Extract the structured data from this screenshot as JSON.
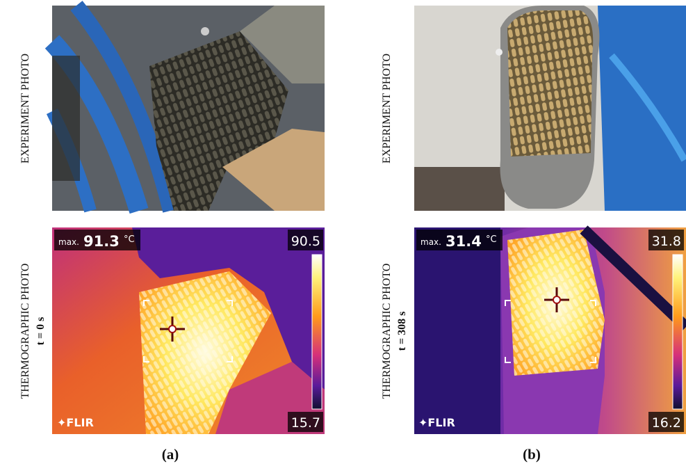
{
  "panels": [
    {
      "caption": "(a)",
      "experiment_label": "EXPERIMENT PHOTO",
      "thermo_label": "THERMOGRAPHIC PHOTO",
      "time": "t = 0 s",
      "max_label": "max.",
      "max_value": 91.3,
      "unit": "°C",
      "scale_max": 90.5,
      "scale_min": 15.7,
      "logo": "FLIR"
    },
    {
      "caption": "(b)",
      "experiment_label": "EXPERIMENT PHOTO",
      "thermo_label": "THERMOGRAPHIC PHOTO",
      "time": "t = 308 s",
      "max_label": "max.",
      "max_value": 31.4,
      "unit": "°C",
      "scale_max": 31.8,
      "scale_min": 16.2,
      "logo": "FLIR"
    }
  ]
}
